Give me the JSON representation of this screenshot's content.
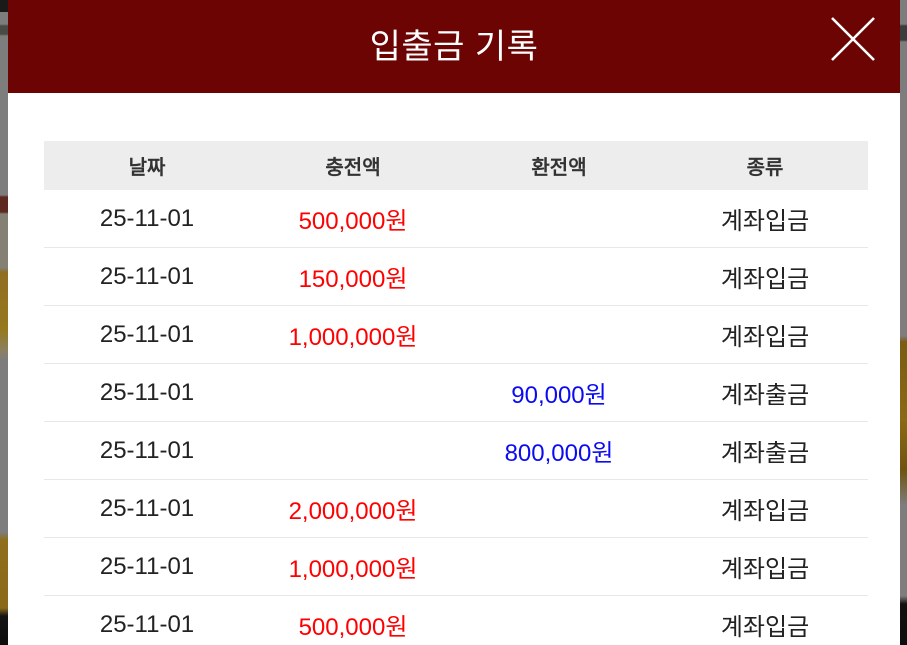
{
  "modal": {
    "title": "입출금 기록",
    "close_icon": "close-x"
  },
  "table": {
    "columns": [
      "날짜",
      "충전액",
      "환전액",
      "종류"
    ],
    "rows": [
      {
        "date": "25-11-01",
        "deposit": "500,000원",
        "withdrawal": "",
        "type": "계좌입금"
      },
      {
        "date": "25-11-01",
        "deposit": "150,000원",
        "withdrawal": "",
        "type": "계좌입금"
      },
      {
        "date": "25-11-01",
        "deposit": "1,000,000원",
        "withdrawal": "",
        "type": "계좌입금"
      },
      {
        "date": "25-11-01",
        "deposit": "",
        "withdrawal": "90,000원",
        "type": "계좌출금"
      },
      {
        "date": "25-11-01",
        "deposit": "",
        "withdrawal": "800,000원",
        "type": "계좌출금"
      },
      {
        "date": "25-11-01",
        "deposit": "2,000,000원",
        "withdrawal": "",
        "type": "계좌입금"
      },
      {
        "date": "25-11-01",
        "deposit": "1,000,000원",
        "withdrawal": "",
        "type": "계좌입금"
      },
      {
        "date": "25-11-01",
        "deposit": "500,000원",
        "withdrawal": "",
        "type": "계좌입금"
      }
    ]
  },
  "colors": {
    "header_bg": "#6c0404",
    "deposit_text": "#ff0000",
    "withdrawal_text": "#0b0bf2",
    "table_header_bg": "#ededed"
  }
}
